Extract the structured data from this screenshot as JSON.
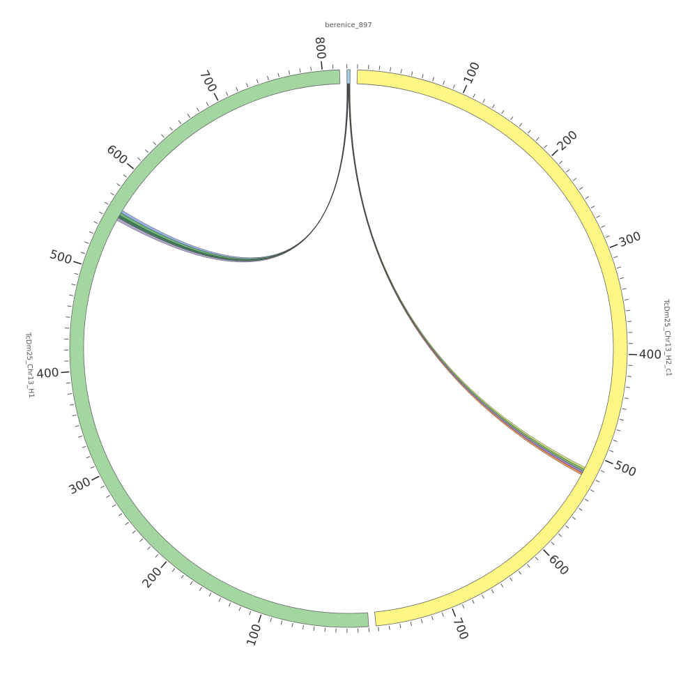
{
  "segments": [
    {
      "name": "berenice_897",
      "length": 3,
      "color": "#a6cde0"
    },
    {
      "name": "TcDm25_Chr13_H2_c1",
      "length": 772,
      "color": "#fff785",
      "ticks": [
        100,
        200,
        300,
        400,
        500,
        600,
        700
      ]
    },
    {
      "name": "TcDm25_Chr13_H1",
      "length": 816,
      "color": "#a3d6a1",
      "ticks": [
        100,
        200,
        300,
        400,
        500,
        600,
        700,
        800
      ]
    }
  ],
  "links": [
    {
      "source": 0,
      "source_range": [
        0,
        1.5
      ],
      "target": 2,
      "target_range": [
        551,
        562
      ],
      "colors": [
        "#8fa8e0",
        "#5fae6a",
        "#2f6f4a",
        "#a59cc2"
      ]
    },
    {
      "source": 0,
      "source_range": [
        1.5,
        3
      ],
      "target": 1,
      "target_range": [
        514,
        522
      ],
      "colors": [
        "#e88a4a",
        "#9b79c9",
        "#6fb36a",
        "#c6d96a"
      ]
    }
  ]
}
